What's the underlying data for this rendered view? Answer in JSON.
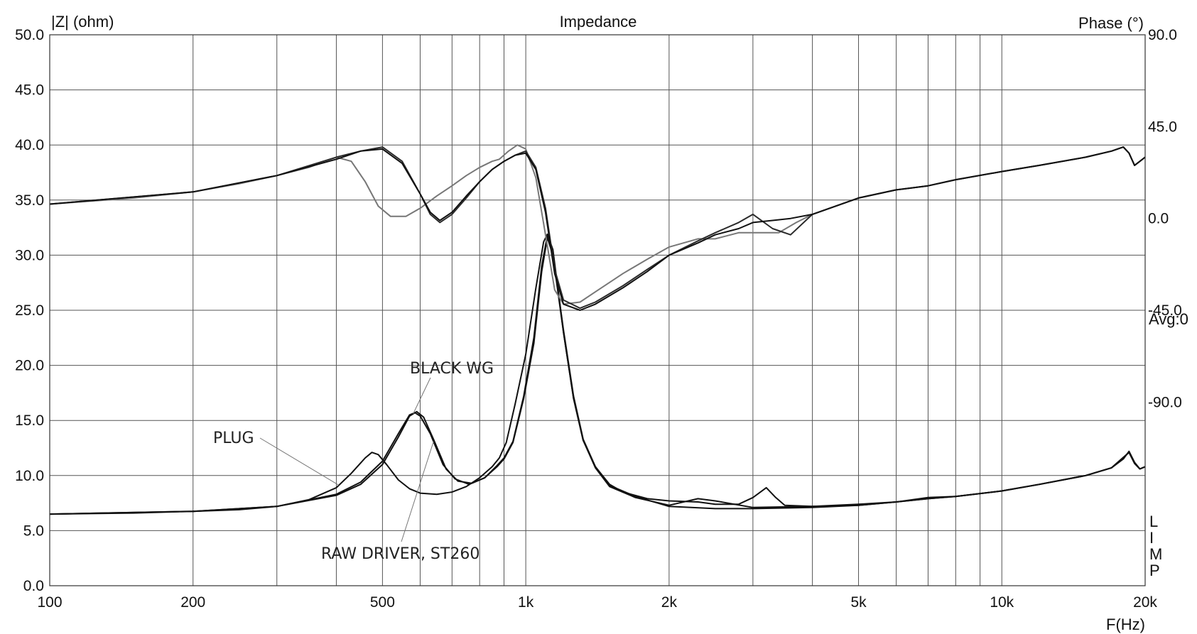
{
  "chart_data": {
    "type": "line",
    "title": "Impedance",
    "xlabel": "F(Hz)",
    "ylabel_left": "|Z| (ohm)",
    "ylabel_right": "Phase (°)",
    "x_scale": "log",
    "xlim": [
      100,
      20000
    ],
    "ylim_left": [
      0,
      50
    ],
    "ylim_right_phase": [
      -180,
      90
    ],
    "grid": true,
    "x_tick_values": [
      100,
      200,
      500,
      1000,
      2000,
      5000,
      10000,
      20000
    ],
    "x_tick_labels": [
      "100",
      "200",
      "500",
      "1k",
      "2k",
      "5k",
      "10k",
      "20k"
    ],
    "y_tick_labels_left": [
      "0.0",
      "5.0",
      "10.0",
      "15.0",
      "20.0",
      "25.0",
      "30.0",
      "35.0",
      "40.0",
      "45.0",
      "50.0"
    ],
    "y_tick_labels_right": [
      "90.0",
      "45.0",
      "0.0",
      "-45.0",
      "-90.0"
    ],
    "right_notes": [
      "Avg:0"
    ],
    "corner_label": [
      "L",
      "I",
      "M",
      "P"
    ],
    "annotations": [
      {
        "text": "PLUG",
        "target_series": "PLUG"
      },
      {
        "text": "BLACK WG",
        "target_series": "BLACK WG"
      },
      {
        "text": "RAW DRIVER, ST260",
        "target_series": "RAW DRIVER, ST260"
      }
    ],
    "series": [
      {
        "name": "PLUG",
        "axis": "impedance",
        "color": "#111111",
        "points": [
          [
            100,
            6.5
          ],
          [
            150,
            6.6
          ],
          [
            200,
            6.75
          ],
          [
            250,
            6.9
          ],
          [
            300,
            7.2
          ],
          [
            350,
            7.8
          ],
          [
            400,
            8.9
          ],
          [
            430,
            10.2
          ],
          [
            460,
            11.6
          ],
          [
            475,
            12.1
          ],
          [
            490,
            11.9
          ],
          [
            510,
            11.0
          ],
          [
            540,
            9.6
          ],
          [
            570,
            8.8
          ],
          [
            600,
            8.4
          ],
          [
            650,
            8.3
          ],
          [
            700,
            8.5
          ],
          [
            750,
            9.0
          ],
          [
            800,
            9.8
          ],
          [
            850,
            10.8
          ],
          [
            880,
            11.6
          ],
          [
            910,
            13.0
          ],
          [
            950,
            16.5
          ],
          [
            1000,
            21.0
          ],
          [
            1050,
            27.0
          ],
          [
            1090,
            31.2
          ],
          [
            1110,
            31.9
          ],
          [
            1140,
            30.5
          ],
          [
            1200,
            23.0
          ],
          [
            1260,
            17.0
          ],
          [
            1320,
            13.2
          ],
          [
            1400,
            10.8
          ],
          [
            1500,
            9.2
          ],
          [
            1600,
            8.5
          ],
          [
            1800,
            7.9
          ],
          [
            2000,
            7.7
          ],
          [
            2300,
            7.6
          ],
          [
            2500,
            7.4
          ],
          [
            2800,
            7.4
          ],
          [
            3000,
            8.0
          ],
          [
            3200,
            8.9
          ],
          [
            3350,
            8.0
          ],
          [
            3500,
            7.3
          ],
          [
            4000,
            7.2
          ],
          [
            5000,
            7.3
          ],
          [
            6000,
            7.6
          ],
          [
            7000,
            7.9
          ],
          [
            8000,
            8.1
          ],
          [
            10000,
            8.6
          ],
          [
            12000,
            9.2
          ],
          [
            15000,
            10.0
          ],
          [
            17000,
            10.7
          ],
          [
            18000,
            11.5
          ],
          [
            18500,
            12.2
          ],
          [
            19000,
            11.2
          ],
          [
            19500,
            10.6
          ],
          [
            20000,
            10.8
          ]
        ]
      },
      {
        "name": "BLACK WG",
        "axis": "impedance",
        "color": "#111111",
        "points": [
          [
            100,
            6.5
          ],
          [
            200,
            6.75
          ],
          [
            300,
            7.2
          ],
          [
            400,
            8.2
          ],
          [
            450,
            9.2
          ],
          [
            500,
            11.0
          ],
          [
            540,
            13.5
          ],
          [
            570,
            15.4
          ],
          [
            590,
            15.8
          ],
          [
            610,
            15.3
          ],
          [
            640,
            13.3
          ],
          [
            680,
            10.6
          ],
          [
            720,
            9.5
          ],
          [
            770,
            9.3
          ],
          [
            820,
            9.8
          ],
          [
            870,
            10.8
          ],
          [
            900,
            11.5
          ],
          [
            940,
            13.0
          ],
          [
            990,
            17.0
          ],
          [
            1040,
            22.0
          ],
          [
            1080,
            28.5
          ],
          [
            1110,
            31.6
          ],
          [
            1140,
            30.0
          ],
          [
            1200,
            23.0
          ],
          [
            1260,
            17.0
          ],
          [
            1320,
            13.2
          ],
          [
            1400,
            10.7
          ],
          [
            1500,
            9.0
          ],
          [
            1700,
            8.0
          ],
          [
            2000,
            7.3
          ],
          [
            2300,
            7.9
          ],
          [
            2500,
            7.7
          ],
          [
            3000,
            7.1
          ],
          [
            4000,
            7.2
          ],
          [
            5000,
            7.4
          ],
          [
            6000,
            7.6
          ],
          [
            7000,
            8.0
          ],
          [
            8000,
            8.1
          ],
          [
            10000,
            8.6
          ],
          [
            12000,
            9.2
          ],
          [
            15000,
            10.0
          ],
          [
            17000,
            10.7
          ],
          [
            18500,
            12.1
          ],
          [
            19000,
            11.1
          ],
          [
            19500,
            10.6
          ],
          [
            20000,
            10.8
          ]
        ]
      },
      {
        "name": "RAW DRIVER, ST260",
        "axis": "impedance",
        "color": "#111111",
        "points": [
          [
            100,
            6.5
          ],
          [
            200,
            6.75
          ],
          [
            300,
            7.2
          ],
          [
            400,
            8.3
          ],
          [
            450,
            9.4
          ],
          [
            500,
            11.3
          ],
          [
            540,
            13.8
          ],
          [
            570,
            15.5
          ],
          [
            585,
            15.7
          ],
          [
            600,
            15.4
          ],
          [
            630,
            13.8
          ],
          [
            670,
            11.0
          ],
          [
            710,
            9.7
          ],
          [
            760,
            9.2
          ],
          [
            820,
            9.8
          ],
          [
            870,
            10.9
          ],
          [
            900,
            11.6
          ],
          [
            940,
            13.1
          ],
          [
            990,
            17.2
          ],
          [
            1040,
            22.5
          ],
          [
            1080,
            29.0
          ],
          [
            1110,
            31.8
          ],
          [
            1140,
            30.2
          ],
          [
            1200,
            23.2
          ],
          [
            1260,
            17.2
          ],
          [
            1320,
            13.3
          ],
          [
            1400,
            10.8
          ],
          [
            1500,
            9.1
          ],
          [
            1700,
            8.1
          ],
          [
            2000,
            7.2
          ],
          [
            2500,
            7.0
          ],
          [
            3000,
            7.0
          ],
          [
            4000,
            7.1
          ],
          [
            5000,
            7.3
          ],
          [
            6000,
            7.6
          ],
          [
            7000,
            7.9
          ],
          [
            8000,
            8.1
          ],
          [
            10000,
            8.6
          ],
          [
            12000,
            9.2
          ],
          [
            15000,
            10.0
          ],
          [
            17000,
            10.7
          ],
          [
            18500,
            12.1
          ],
          [
            19000,
            11.1
          ],
          [
            19500,
            10.6
          ],
          [
            20000,
            10.8
          ]
        ]
      },
      {
        "name": "PLUG phase",
        "axis": "phase",
        "color": "#777777",
        "points": [
          [
            100,
            7
          ],
          [
            150,
            10
          ],
          [
            200,
            13
          ],
          [
            250,
            17
          ],
          [
            300,
            21
          ],
          [
            350,
            25
          ],
          [
            400,
            30
          ],
          [
            430,
            28
          ],
          [
            460,
            18
          ],
          [
            490,
            6
          ],
          [
            520,
            1
          ],
          [
            560,
            1
          ],
          [
            600,
            5
          ],
          [
            650,
            11
          ],
          [
            700,
            16
          ],
          [
            750,
            21
          ],
          [
            800,
            25
          ],
          [
            850,
            28
          ],
          [
            880,
            29
          ],
          [
            920,
            33
          ],
          [
            960,
            36
          ],
          [
            1000,
            34
          ],
          [
            1050,
            20
          ],
          [
            1100,
            -8
          ],
          [
            1150,
            -35
          ],
          [
            1200,
            -42
          ],
          [
            1300,
            -41
          ],
          [
            1400,
            -36
          ],
          [
            1600,
            -27
          ],
          [
            1800,
            -20
          ],
          [
            2000,
            -14
          ],
          [
            2300,
            -10
          ],
          [
            2500,
            -10
          ],
          [
            2800,
            -7
          ],
          [
            3000,
            -7
          ],
          [
            3200,
            -7
          ],
          [
            3400,
            -7
          ],
          [
            3700,
            -2
          ],
          [
            4000,
            2
          ],
          [
            5000,
            10
          ],
          [
            6000,
            14
          ],
          [
            7000,
            16
          ],
          [
            8000,
            19
          ],
          [
            10000,
            23
          ],
          [
            12000,
            26
          ],
          [
            15000,
            30
          ],
          [
            17000,
            33
          ],
          [
            18000,
            35
          ],
          [
            18500,
            32
          ],
          [
            19000,
            26
          ],
          [
            19500,
            28
          ],
          [
            20000,
            30
          ]
        ]
      },
      {
        "name": "BLACK WG phase",
        "axis": "phase",
        "color": "#2a2a2a",
        "points": [
          [
            100,
            7
          ],
          [
            200,
            13
          ],
          [
            300,
            21
          ],
          [
            400,
            30
          ],
          [
            450,
            33
          ],
          [
            500,
            35
          ],
          [
            550,
            28
          ],
          [
            600,
            12
          ],
          [
            630,
            2
          ],
          [
            660,
            -2
          ],
          [
            700,
            2
          ],
          [
            750,
            10
          ],
          [
            800,
            18
          ],
          [
            850,
            24
          ],
          [
            900,
            28
          ],
          [
            950,
            31
          ],
          [
            1000,
            33
          ],
          [
            1050,
            25
          ],
          [
            1100,
            5
          ],
          [
            1150,
            -25
          ],
          [
            1200,
            -40
          ],
          [
            1300,
            -44
          ],
          [
            1400,
            -41
          ],
          [
            1600,
            -33
          ],
          [
            1800,
            -25
          ],
          [
            2000,
            -18
          ],
          [
            2300,
            -11
          ],
          [
            2500,
            -7
          ],
          [
            2800,
            -2
          ],
          [
            3000,
            2
          ],
          [
            3300,
            -5
          ],
          [
            3600,
            -8
          ],
          [
            4000,
            2
          ],
          [
            5000,
            10
          ],
          [
            6000,
            14
          ],
          [
            7000,
            16
          ],
          [
            8000,
            19
          ],
          [
            10000,
            23
          ],
          [
            12000,
            26
          ],
          [
            15000,
            30
          ],
          [
            17000,
            33
          ],
          [
            18000,
            35
          ],
          [
            18500,
            32
          ],
          [
            19000,
            26
          ],
          [
            19500,
            28
          ],
          [
            20000,
            30
          ]
        ]
      },
      {
        "name": "RAW DRIVER, ST260 phase",
        "axis": "phase",
        "color": "#111111",
        "points": [
          [
            100,
            7
          ],
          [
            200,
            13
          ],
          [
            300,
            21
          ],
          [
            400,
            29
          ],
          [
            450,
            33
          ],
          [
            500,
            34
          ],
          [
            550,
            27
          ],
          [
            600,
            12
          ],
          [
            630,
            3
          ],
          [
            660,
            -1
          ],
          [
            700,
            3
          ],
          [
            750,
            11
          ],
          [
            800,
            18
          ],
          [
            850,
            24
          ],
          [
            900,
            28
          ],
          [
            950,
            31
          ],
          [
            1000,
            32
          ],
          [
            1050,
            24
          ],
          [
            1100,
            3
          ],
          [
            1150,
            -27
          ],
          [
            1200,
            -42
          ],
          [
            1300,
            -45
          ],
          [
            1400,
            -42
          ],
          [
            1600,
            -34
          ],
          [
            1800,
            -26
          ],
          [
            2000,
            -18
          ],
          [
            2300,
            -12
          ],
          [
            2500,
            -8
          ],
          [
            2800,
            -5
          ],
          [
            3000,
            -2
          ],
          [
            3300,
            -1
          ],
          [
            3600,
            0
          ],
          [
            4000,
            2
          ],
          [
            5000,
            10
          ],
          [
            6000,
            14
          ],
          [
            7000,
            16
          ],
          [
            8000,
            19
          ],
          [
            10000,
            23
          ],
          [
            12000,
            26
          ],
          [
            15000,
            30
          ],
          [
            17000,
            33
          ],
          [
            18000,
            35
          ],
          [
            18500,
            32
          ],
          [
            19000,
            26
          ],
          [
            19500,
            28
          ],
          [
            20000,
            30
          ]
        ]
      }
    ]
  }
}
